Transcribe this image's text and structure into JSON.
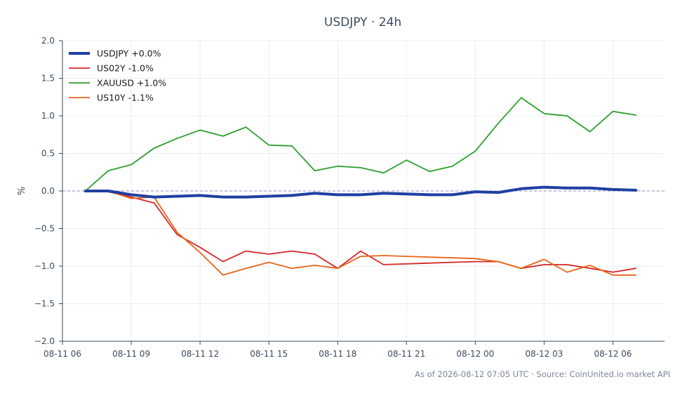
{
  "chart_data": {
    "type": "line",
    "title": "USDJPY · 24h",
    "ylabel": "%",
    "xlabel": "",
    "ylim": [
      -2.0,
      2.0
    ],
    "yticks": [
      2.0,
      1.5,
      1.0,
      0.5,
      0.0,
      -0.5,
      -1.0,
      -1.5,
      -2.0
    ],
    "ytick_labels": [
      "2.0",
      "1.5",
      "1.0",
      "0.5",
      "0.0",
      "−0.5",
      "−1.0",
      "−1.5",
      "−2.0"
    ],
    "x_range": [
      "2026-08-11 06:00",
      "2026-08-12 08:15"
    ],
    "xticks": [
      "2026-08-11 06:00",
      "2026-08-11 09:00",
      "2026-08-11 12:00",
      "2026-08-11 15:00",
      "2026-08-11 18:00",
      "2026-08-11 21:00",
      "2026-08-12 00:00",
      "2026-08-12 03:00",
      "2026-08-12 06:00"
    ],
    "xtick_labels": [
      "08-11 06",
      "08-11 09",
      "08-11 12",
      "08-11 15",
      "08-11 18",
      "08-11 21",
      "08-12 00",
      "08-12 03",
      "08-12 06"
    ],
    "x": [
      "2026-08-11 07:00",
      "2026-08-11 08:00",
      "2026-08-11 09:00",
      "2026-08-11 10:00",
      "2026-08-11 11:00",
      "2026-08-11 12:00",
      "2026-08-11 13:00",
      "2026-08-11 14:00",
      "2026-08-11 15:00",
      "2026-08-11 16:00",
      "2026-08-11 17:00",
      "2026-08-11 18:00",
      "2026-08-11 19:00",
      "2026-08-11 20:00",
      "2026-08-11 21:00",
      "2026-08-11 22:00",
      "2026-08-11 23:00",
      "2026-08-12 00:00",
      "2026-08-12 01:00",
      "2026-08-12 02:00",
      "2026-08-12 03:00",
      "2026-08-12 04:00",
      "2026-08-12 05:00",
      "2026-08-12 06:00",
      "2026-08-12 07:00"
    ],
    "zero_line": true,
    "grid": true,
    "legend_position": "top-left",
    "series": [
      {
        "name": "USDJPY +0.0%",
        "color": "#1f3fa3",
        "width": 4,
        "values": [
          0.0,
          0.0,
          -0.05,
          -0.08,
          -0.07,
          -0.06,
          -0.08,
          -0.08,
          -0.07,
          -0.06,
          -0.03,
          -0.05,
          -0.05,
          -0.03,
          -0.04,
          -0.05,
          -0.05,
          -0.01,
          -0.02,
          0.03,
          0.05,
          0.04,
          0.04,
          0.02,
          0.01
        ]
      },
      {
        "name": "US02Y -1.0%",
        "color": "#d62728",
        "width": 1.8,
        "values": [
          0.0,
          -0.01,
          -0.08,
          -0.16,
          -0.58,
          -0.75,
          -0.94,
          -0.8,
          -0.84,
          -0.8,
          -0.84,
          -1.03,
          -0.8,
          -0.98,
          -0.97,
          -0.96,
          -0.95,
          -0.94,
          -0.94,
          -1.03,
          -0.98,
          -0.98,
          -1.03,
          -1.08,
          -1.03
        ]
      },
      {
        "name": "XAUUSD +1.0%",
        "color": "#2ca02c",
        "width": 1.8,
        "values": [
          0.0,
          0.27,
          0.35,
          0.57,
          0.7,
          0.81,
          0.73,
          0.85,
          0.61,
          0.6,
          0.27,
          0.33,
          0.31,
          0.24,
          0.41,
          0.26,
          0.33,
          0.53,
          0.9,
          1.24,
          1.03,
          1.0,
          0.79,
          1.06,
          1.01
        ]
      },
      {
        "name": "US10Y -1.1%",
        "color": "#e8651a",
        "width": 1.8,
        "values": [
          0.0,
          0.0,
          -0.1,
          -0.08,
          -0.55,
          -0.82,
          -1.12,
          -1.03,
          -0.95,
          -1.03,
          -0.99,
          -1.03,
          -0.87,
          -0.86,
          -0.87,
          -0.88,
          -0.89,
          -0.9,
          -0.94,
          -1.03,
          -0.91,
          -1.08,
          -0.99,
          -1.12,
          -1.12
        ]
      }
    ]
  },
  "footer": {
    "text": "As of 2026-08-12 07:05 UTC · Source: CoinUnited.io market API"
  }
}
